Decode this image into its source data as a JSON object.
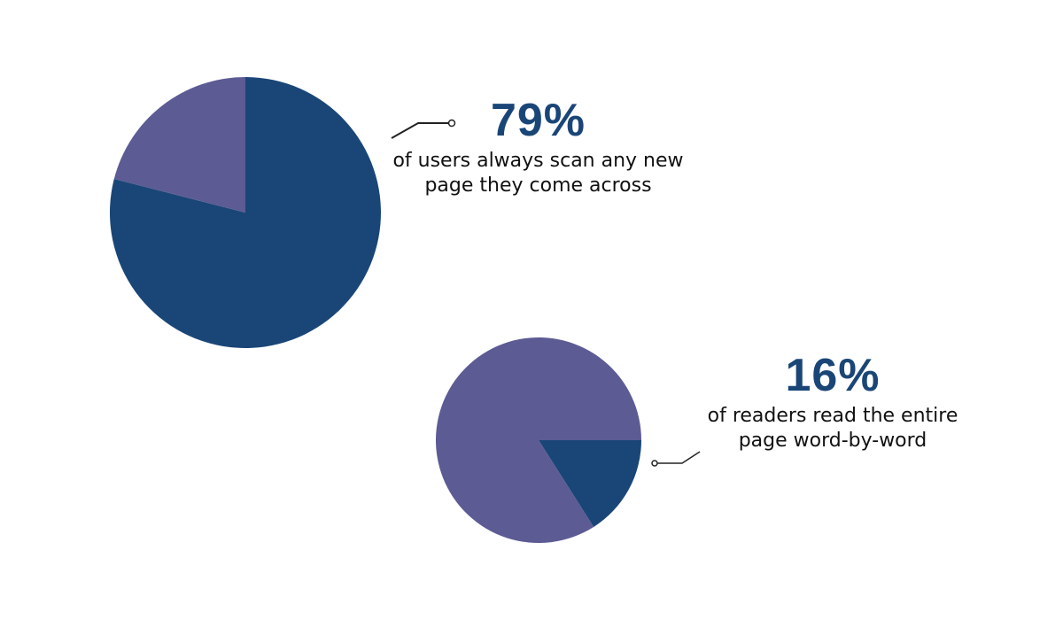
{
  "colors": {
    "primary": "#1a4677",
    "secondary": "#5c5b94",
    "text": "#111111"
  },
  "chart_data": [
    {
      "type": "pie",
      "slices": [
        {
          "value": 79,
          "color": "#1a4677"
        },
        {
          "value": 21,
          "color": "#5c5b94"
        }
      ],
      "annotation": {
        "value_label": "79%",
        "text": "of users always scan any new page they come across"
      }
    },
    {
      "type": "pie",
      "slices": [
        {
          "value": 16,
          "color": "#1a4677"
        },
        {
          "value": 84,
          "color": "#5c5b94"
        }
      ],
      "annotation": {
        "value_label": "16%",
        "text": "of readers read the entire page word-by-word"
      }
    }
  ]
}
